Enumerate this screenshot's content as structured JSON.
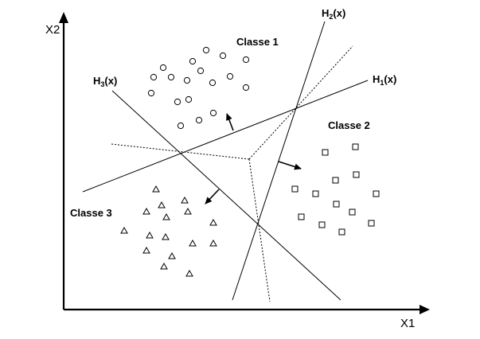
{
  "axes": {
    "x_label": "X1",
    "y_label": "X2"
  },
  "classes": [
    {
      "label": "Classe  1",
      "marker": "circle"
    },
    {
      "label": "Classe  2",
      "marker": "square"
    },
    {
      "label": "Classe  3",
      "marker": "triangle"
    }
  ],
  "hyperplanes": [
    {
      "name": "H",
      "sub": "1",
      "arg": "(x)"
    },
    {
      "name": "H",
      "sub": "2",
      "arg": "(x)"
    },
    {
      "name": "H",
      "sub": "3",
      "arg": "(x)"
    }
  ]
}
